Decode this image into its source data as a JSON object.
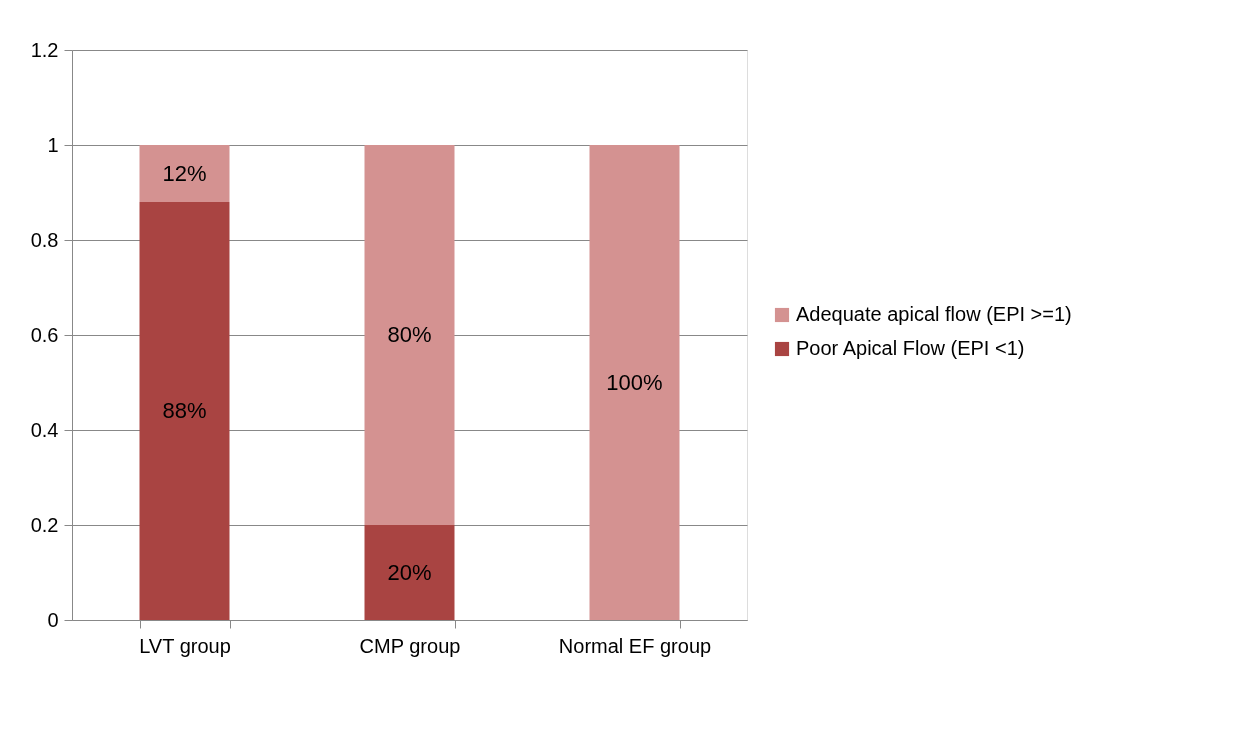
{
  "chart_data": {
    "type": "bar",
    "stacked": true,
    "categories": [
      "LVT group",
      "CMP group",
      "Normal EF group"
    ],
    "series": [
      {
        "name": "Poor Apical Flow (EPI <1)",
        "color": "#a94442",
        "values": [
          0.88,
          0.2,
          0
        ],
        "value_labels": [
          "88%",
          "20%",
          null
        ]
      },
      {
        "name": "Adequate apical flow (EPI >=1)",
        "color": "#d49291",
        "values": [
          0.12,
          0.8,
          1
        ],
        "value_labels": [
          "12%",
          "80%",
          "100%"
        ]
      }
    ],
    "ylim": [
      0,
      1.2
    ],
    "yticks": [
      0,
      0.2,
      0.4,
      0.6,
      0.8,
      1,
      1.2
    ],
    "grid": "y",
    "legend": "right"
  }
}
